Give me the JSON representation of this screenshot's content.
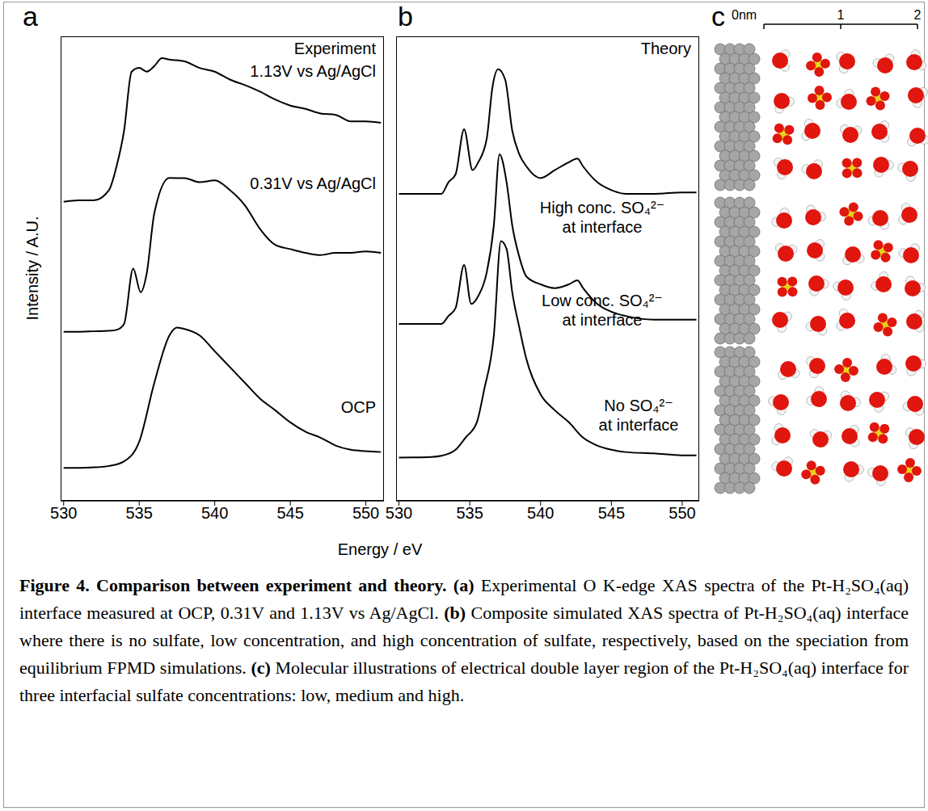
{
  "chart_data": [
    {
      "type": "line",
      "panel": "a",
      "title": "Experiment",
      "x_label": "Energy / eV",
      "y_label": "Intensity / A.U.",
      "xlim": [
        529.8,
        551.2
      ],
      "xticks": [
        530,
        535,
        540,
        545,
        550
      ],
      "ylim": [
        0,
        10
      ],
      "tick_labels": "x",
      "grid": false,
      "series": [
        {
          "name": "1.13V vs Ag/AgCl",
          "color": "#000000",
          "x": [
            530,
            531,
            532,
            533,
            533.5,
            534,
            534.5,
            535,
            535.5,
            536,
            536.5,
            537,
            538,
            539,
            540,
            541,
            542,
            543,
            544,
            545,
            546,
            547,
            548,
            549,
            550,
            551
          ],
          "values": [
            6.44,
            6.47,
            6.47,
            6.69,
            7.2,
            7.97,
            9.24,
            9.32,
            9.24,
            9.36,
            9.53,
            9.5,
            9.46,
            9.32,
            9.24,
            9.07,
            8.95,
            8.81,
            8.64,
            8.51,
            8.44,
            8.34,
            8.31,
            8.17,
            8.17,
            8.14
          ]
        },
        {
          "name": "0.31V vs Ag/AgCl",
          "color": "#000000",
          "x": [
            530,
            531,
            532,
            533,
            533.5,
            534,
            534.6,
            535.1,
            535.5,
            536,
            537,
            538,
            539,
            540,
            541,
            542,
            543,
            544,
            545,
            546,
            547,
            548,
            549,
            550,
            551
          ],
          "values": [
            3.64,
            3.64,
            3.65,
            3.66,
            3.68,
            3.81,
            5.0,
            4.49,
            4.9,
            6.19,
            6.95,
            6.95,
            6.86,
            6.9,
            6.69,
            6.36,
            5.85,
            5.51,
            5.42,
            5.34,
            5.29,
            5.34,
            5.34,
            5.37,
            5.34
          ]
        },
        {
          "name": "OCP",
          "color": "#000000",
          "x": [
            530,
            531,
            532,
            533,
            534,
            535,
            536,
            537,
            537.5,
            538,
            539,
            540,
            541,
            542,
            543,
            544,
            545,
            546,
            547,
            548,
            549,
            550,
            551
          ],
          "values": [
            0.71,
            0.71,
            0.72,
            0.75,
            0.85,
            1.27,
            2.54,
            3.56,
            3.73,
            3.7,
            3.56,
            3.22,
            2.88,
            2.54,
            2.2,
            1.95,
            1.69,
            1.49,
            1.36,
            1.19,
            1.1,
            1.07,
            1.05
          ]
        }
      ]
    },
    {
      "type": "line",
      "panel": "b",
      "title": "Theory",
      "xlim": [
        529.8,
        551.2
      ],
      "xticks": [
        530,
        535,
        540,
        545,
        550
      ],
      "ylim": [
        0,
        10
      ],
      "tick_labels": "x",
      "grid": false,
      "series": [
        {
          "name": "High conc. SO₄²⁻ at interface",
          "color": "#000000",
          "x": [
            530,
            533,
            533.5,
            534,
            534.6,
            535.2,
            535.6,
            536.2,
            536.6,
            537,
            537.5,
            538,
            538.5,
            539,
            540,
            541,
            542,
            542.6,
            543,
            544,
            545,
            546,
            548,
            550,
            551
          ],
          "values": [
            6.61,
            6.61,
            6.86,
            7.03,
            8.0,
            7.12,
            7.29,
            7.8,
            8.9,
            9.29,
            9.07,
            7.97,
            7.46,
            7.2,
            6.95,
            7.12,
            7.29,
            7.37,
            7.2,
            6.86,
            6.69,
            6.61,
            6.61,
            6.64,
            6.64
          ]
        },
        {
          "name": "Low conc. SO₄²⁻ at interface",
          "color": "#000000",
          "x": [
            530,
            533,
            533.5,
            534,
            534.6,
            535.1,
            535.6,
            536.2,
            536.7,
            537.1,
            537.6,
            538,
            538.5,
            539,
            540,
            541,
            542,
            542.6,
            543,
            544,
            545,
            546,
            548,
            550,
            551
          ],
          "values": [
            3.81,
            3.81,
            3.98,
            4.15,
            5.08,
            4.24,
            4.41,
            4.92,
            5.93,
            7.46,
            6.86,
            5.93,
            5.25,
            4.83,
            4.66,
            4.58,
            4.66,
            4.75,
            4.58,
            4.24,
            4.07,
            3.98,
            3.9,
            3.9,
            3.9
          ]
        },
        {
          "name": "No SO₄²⁻ at interface",
          "color": "#000000",
          "x": [
            530,
            532,
            533,
            534,
            534.7,
            535.5,
            536,
            536.7,
            537.2,
            537.6,
            538,
            538.5,
            539,
            540,
            541,
            542,
            543,
            544,
            545,
            546,
            548,
            550,
            551
          ],
          "values": [
            0.93,
            0.94,
            0.97,
            1.1,
            1.36,
            1.69,
            2.37,
            3.56,
            5.59,
            5.42,
            4.49,
            3.73,
            3.05,
            2.29,
            1.95,
            1.69,
            1.36,
            1.19,
            1.1,
            1.05,
            1.02,
            0.98,
            0.98
          ]
        }
      ]
    }
  ],
  "panel_c": {
    "panel": "c",
    "scale_labels": [
      "0nm",
      "1",
      "2"
    ]
  },
  "caption": {
    "title": "Figure 4. Comparison between experiment and theory.",
    "parts": [
      {
        "label": "(a)",
        "text": "Experimental O K-edge XAS spectra of the Pt-H₂SO₄(aq) interface measured at OCP, 0.31V and 1.13V vs Ag/AgCl."
      },
      {
        "label": "(b)",
        "text": "Composite simulated XAS spectra of Pt-H₂SO₄(aq) interface where there is no sulfate, low concentration, and high concentration of sulfate, respectively, based on the speciation from equilibrium FPMD simulations."
      },
      {
        "label": "(c)",
        "text": "Molecular illustrations of electrical double layer region of the Pt-H₂SO₄(aq) interface for three interfacial sulfate concentrations: low, medium and high."
      }
    ]
  }
}
